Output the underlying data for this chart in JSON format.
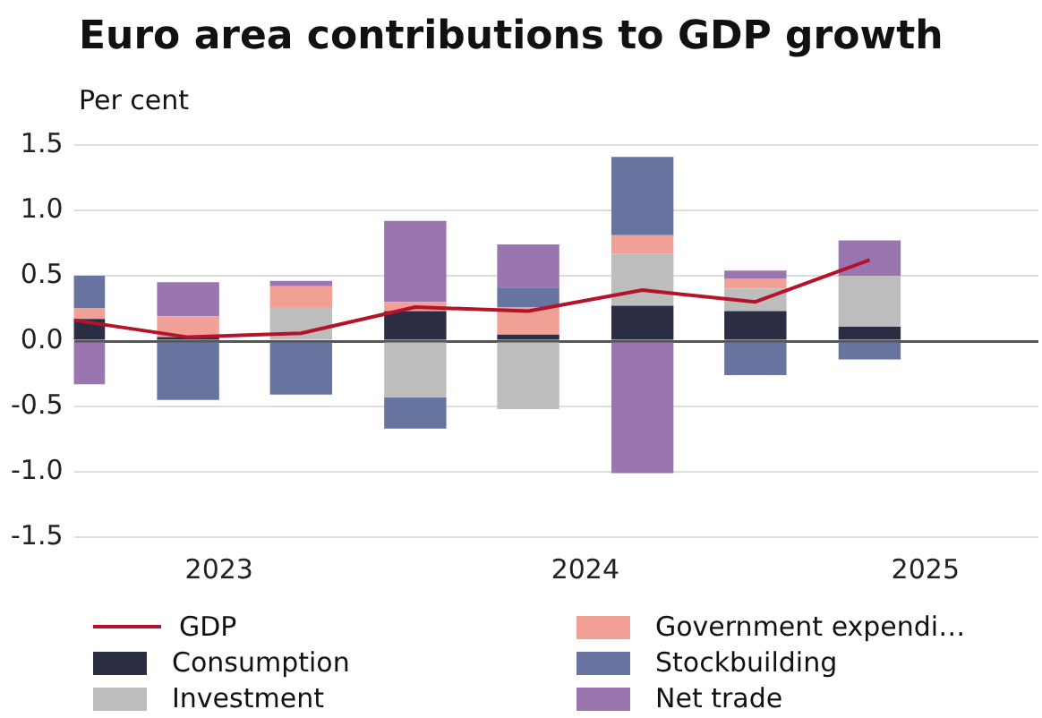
{
  "chart_data": {
    "type": "bar",
    "stacked": true,
    "title": "Euro area contributions to GDP growth",
    "ylabel": "Per cent",
    "x": [
      "2023-05-16",
      "2023-08-16",
      "2023-11-15",
      "2024-02-15",
      "2024-05-16",
      "2024-08-16",
      "2024-11-15",
      "2025-02-15"
    ],
    "xlim": [
      "2023-05-16",
      "2025-07-01"
    ],
    "xticks": [
      {
        "value": "2023-09-10",
        "label": "2023"
      },
      {
        "value": "2024-07-01",
        "label": "2024"
      },
      {
        "value": "2025-04-01",
        "label": "2025"
      }
    ],
    "ylim": [
      -1.5,
      1.5
    ],
    "yticks": [
      -1.5,
      {
        "value": -1,
        "label": "-1.0"
      },
      -0.5,
      {
        "value": 0,
        "label": "0.0"
      },
      0.5,
      {
        "value": 1,
        "label": "1.0"
      },
      1.5
    ],
    "grid": "y",
    "legend": "bottom",
    "series": [
      {
        "name": "GDP",
        "type": "line",
        "color": "#b5132a",
        "marker": "none",
        "values": [
          0.16,
          0.03,
          0.06,
          0.26,
          0.23,
          0.39,
          0.3,
          0.62
        ]
      },
      {
        "name": "Consumption",
        "color": "#2b2d42",
        "values": [
          0.17,
          0.03,
          0,
          0.23,
          0.05,
          0.27,
          0.23,
          0.11
        ]
      },
      {
        "name": "Investment",
        "color": "#bdbdbd",
        "values": [
          0,
          0,
          0.26,
          -0.43,
          -0.52,
          0.4,
          0.17,
          0.39
        ]
      },
      {
        "name": "Government expendi…",
        "color": "#f0a095",
        "values": [
          0.08,
          0.16,
          0.16,
          0.07,
          0.21,
          0.14,
          0.08,
          0
        ]
      },
      {
        "name": "Stockbuilding",
        "color": "#6874a0",
        "values": [
          0.25,
          -0.45,
          -0.41,
          -0.24,
          0.15,
          0.6,
          -0.26,
          -0.14
        ]
      },
      {
        "name": "Net trade",
        "color": "#9a76b0",
        "values": [
          -0.33,
          0.26,
          0.04,
          0.62,
          0.33,
          -1.01,
          0.06,
          0.27
        ]
      }
    ]
  }
}
